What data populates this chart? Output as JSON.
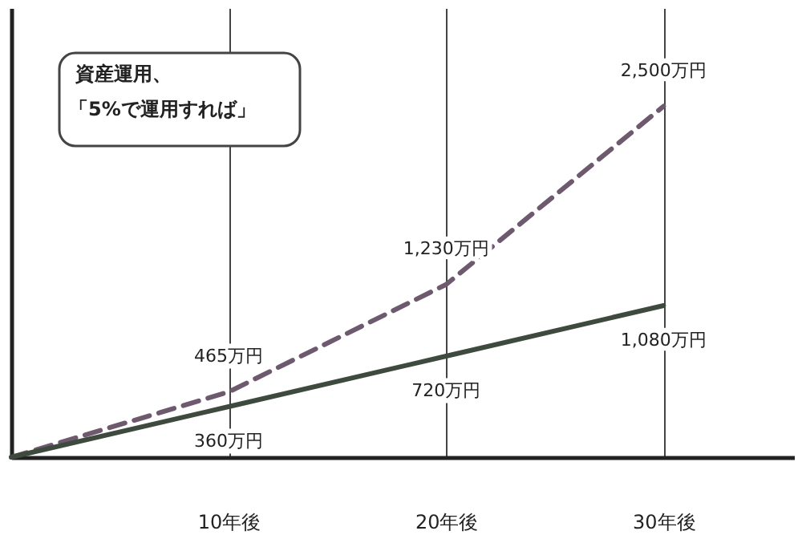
{
  "chart_data": {
    "type": "line",
    "x": [
      0,
      10,
      20,
      30
    ],
    "series": [
      {
        "color": "#6e5a6e",
        "line_style": "dashed",
        "values": [
          0,
          465,
          1230,
          2500
        ],
        "value_labels": [
          null,
          "465万円",
          "1,230万円",
          "2,500万円"
        ]
      },
      {
        "color": "#3f4a3f",
        "line_style": "solid",
        "values": [
          0,
          360,
          720,
          1080
        ],
        "value_labels": [
          null,
          "360万円",
          "720万円",
          "1,080万円"
        ]
      }
    ],
    "xlim": [
      0,
      36
    ],
    "ylim": [
      0,
      3200
    ],
    "xticks": [
      {
        "value": 10,
        "label": "10年後"
      },
      {
        "value": 20,
        "label": "20年後"
      },
      {
        "value": 30,
        "label": "30年後"
      }
    ],
    "tick_labels": "x",
    "grid": "x",
    "marker": "none",
    "annotations": [
      "資産運用、",
      "「5%で運用すれば」"
    ]
  }
}
